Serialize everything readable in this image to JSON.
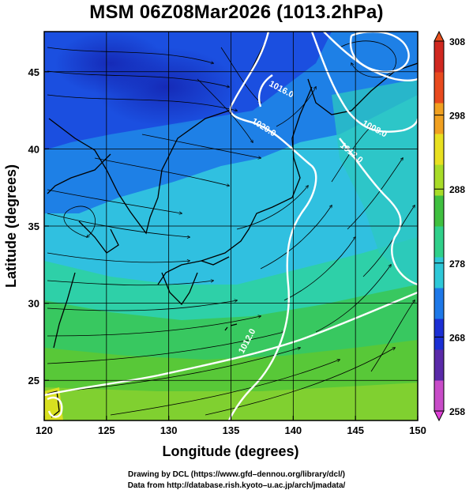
{
  "title": "MSM 06Z08Mar2026 (1013.2hPa)",
  "x_axis": {
    "label": "Longitude (degrees)",
    "range": [
      120,
      150
    ],
    "ticks": [
      "120",
      "125",
      "130",
      "135",
      "140",
      "145",
      "150"
    ]
  },
  "y_axis": {
    "label": "Latitude  (degrees)",
    "range": [
      22.4,
      47.6
    ],
    "ticks": [
      "25",
      "30",
      "35",
      "40",
      "45"
    ]
  },
  "colorbar": {
    "range": [
      258,
      308
    ],
    "ticks": [
      "258",
      "268",
      "278",
      "288",
      "298",
      "308"
    ],
    "colors": [
      "#c84cc8",
      "#5a2aa8",
      "#1b2fd4",
      "#1e78e8",
      "#2ec8d8",
      "#30d08a",
      "#40c040",
      "#a8dc28",
      "#e8e020",
      "#f0a020",
      "#e84a1e",
      "#d02820"
    ]
  },
  "contours": {
    "labels": [
      "1016.0",
      "1020.0",
      "1008.0",
      "1012.0",
      "1012.0"
    ],
    "line_color": "#ffffff"
  },
  "credits": {
    "line1": "Drawing by DCL (https://www.gfd–dennou.org/library/dcl/)",
    "line2": "Data from http://database.rish.kyoto–u.ac.jp/arch/jmadata/"
  }
}
